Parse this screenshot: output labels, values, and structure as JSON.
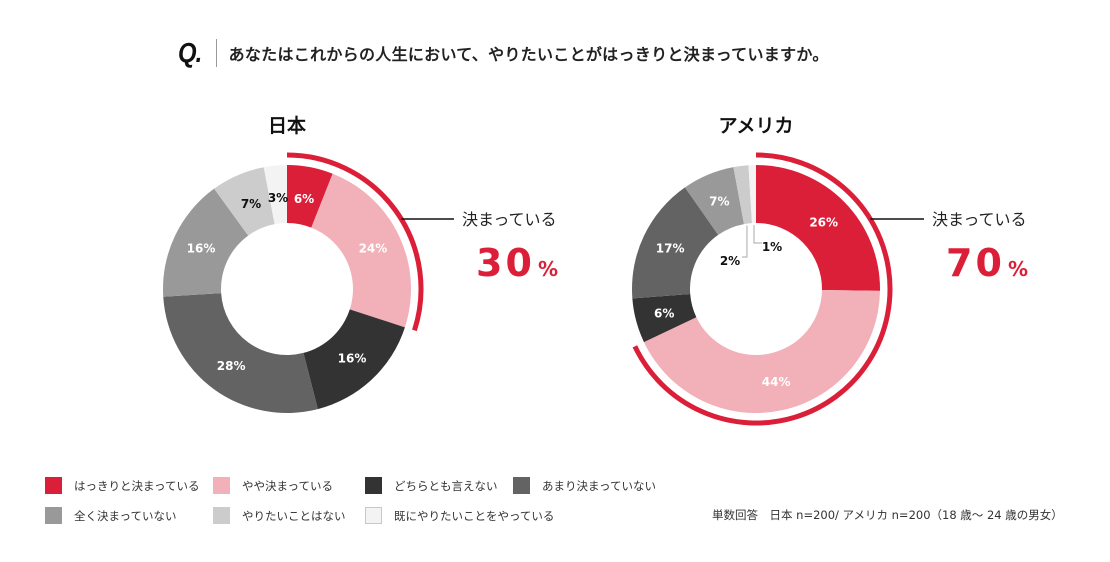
{
  "question": {
    "mark": "Q.",
    "text": "あなたはこれからの人生において、やりたいことがはっきりと決まっていますか。"
  },
  "colors": {
    "accent": "#dc1f38",
    "light_pink": "#f2b0b8",
    "dark": "#333333",
    "mid_dark": "#636363",
    "mid": "#999999",
    "light": "#cccccc",
    "lightest": "#f3f3f3"
  },
  "legend": [
    {
      "label": "はっきりと決まっている",
      "color": "#dc1f38"
    },
    {
      "label": "やや決まっている",
      "color": "#f2b0b8"
    },
    {
      "label": "どちらとも言えない",
      "color": "#333333"
    },
    {
      "label": "あまり決まっていない",
      "color": "#636363"
    },
    {
      "label": "全く決まっていない",
      "color": "#999999"
    },
    {
      "label": "やりたいことはない",
      "color": "#cccccc"
    },
    {
      "label": "既にやりたいことをやっている",
      "color": "#f3f3f3"
    }
  ],
  "note": "単数回答　日本 n=200/ アメリカ n=200（18 歳～ 24 歳の男女）",
  "chart_data": [
    {
      "type": "pie",
      "variant": "donut",
      "title": "日本",
      "categories": [
        "はっきりと決まっている",
        "やや決まっている",
        "どちらとも言えない",
        "あまり決まっていない",
        "全く決まっていない",
        "やりたいことはない",
        "既にやりたいことをやっている"
      ],
      "values": [
        6,
        24,
        16,
        28,
        16,
        7,
        3
      ],
      "labels": [
        "6%",
        "24%",
        "16%",
        "28%",
        "16%",
        "7%",
        "3%"
      ],
      "highlight": {
        "label": "決まっている",
        "value": "30",
        "unit": "%",
        "covers": [
          "はっきりと決まっている",
          "やや決まっている"
        ]
      }
    },
    {
      "type": "pie",
      "variant": "donut",
      "title": "アメリカ",
      "categories": [
        "はっきりと決まっている",
        "やや決まっている",
        "どちらとも言えない",
        "あまり決まっていない",
        "全く決まっていない",
        "やりたいことはない",
        "既にやりたいことをやっている"
      ],
      "values": [
        26,
        44,
        6,
        17,
        7,
        2,
        1
      ],
      "labels": [
        "26%",
        "44%",
        "6%",
        "17%",
        "7%",
        "2%",
        "1%"
      ],
      "highlight": {
        "label": "決まっている",
        "value": "70",
        "unit": "%",
        "covers": [
          "はっきりと決まっている",
          "やや決まっている"
        ]
      }
    }
  ]
}
